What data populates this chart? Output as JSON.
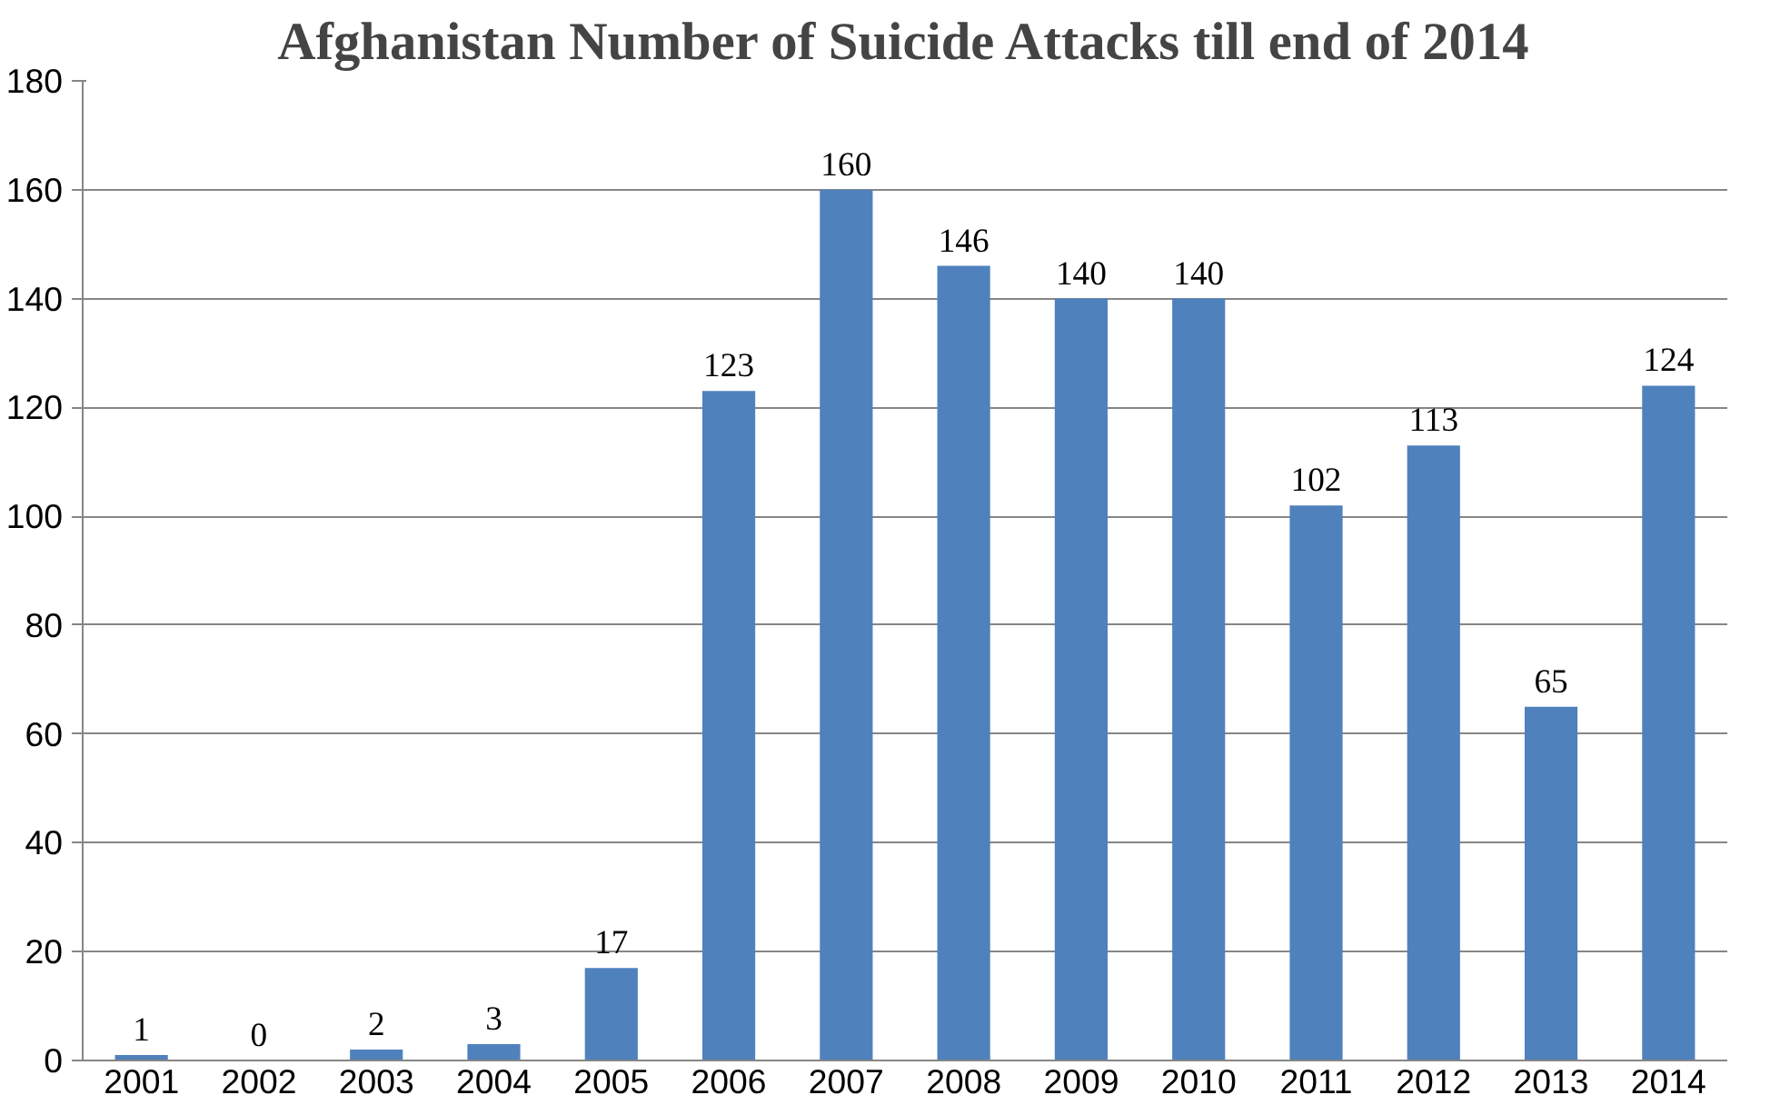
{
  "chart_data": {
    "type": "bar",
    "title": "Afghanistan Number of Suicide Attacks till end of 2014",
    "categories": [
      "2001",
      "2002",
      "2003",
      "2004",
      "2005",
      "2006",
      "2007",
      "2008",
      "2009",
      "2010",
      "2011",
      "2012",
      "2013",
      "2014"
    ],
    "values": [
      1,
      0,
      2,
      3,
      17,
      123,
      160,
      146,
      140,
      140,
      102,
      113,
      65,
      124
    ],
    "color": "#4f81bd",
    "ylim": [
      0,
      180
    ],
    "yticks": [
      0,
      20,
      40,
      60,
      80,
      100,
      120,
      140,
      160,
      180
    ],
    "grid": "y",
    "data_labels": true
  }
}
